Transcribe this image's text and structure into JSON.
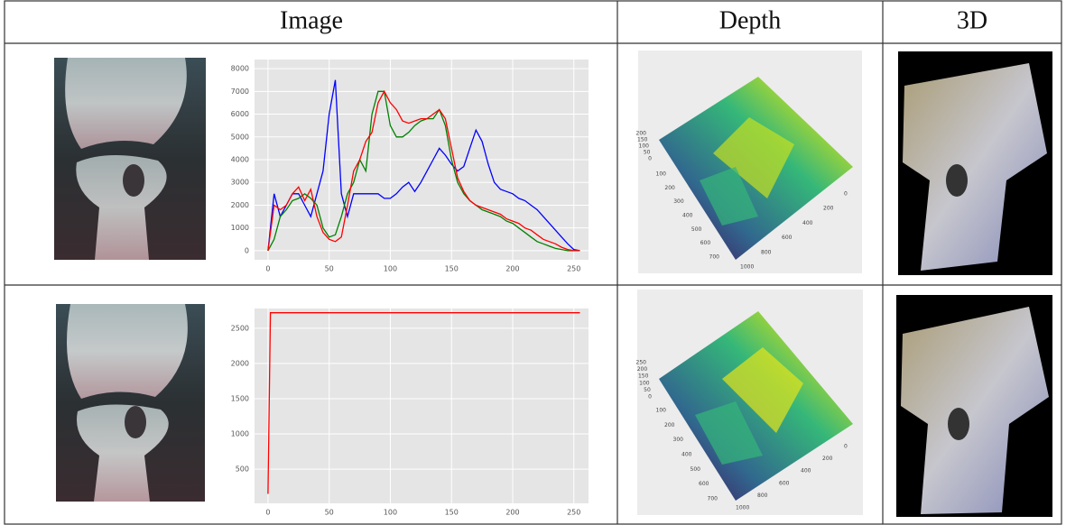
{
  "table": {
    "headers": [
      "Image",
      "Depth",
      "3D"
    ]
  },
  "chart_data": [
    {
      "type": "line",
      "x": [
        0,
        5,
        10,
        15,
        20,
        25,
        30,
        35,
        40,
        45,
        50,
        55,
        60,
        65,
        70,
        75,
        80,
        85,
        90,
        95,
        100,
        105,
        110,
        115,
        120,
        125,
        130,
        135,
        140,
        145,
        150,
        155,
        160,
        165,
        170,
        175,
        180,
        185,
        190,
        195,
        200,
        205,
        210,
        215,
        220,
        225,
        230,
        235,
        240,
        245,
        250,
        255
      ],
      "series": [
        {
          "color": "#0000ff",
          "values": [
            0,
            2500,
            1500,
            2000,
            2500,
            2500,
            2000,
            1500,
            2500,
            3500,
            6000,
            7500,
            2500,
            1500,
            2500,
            2500,
            2500,
            2500,
            2500,
            2300,
            2300,
            2500,
            2800,
            3000,
            2600,
            3000,
            3500,
            4000,
            4500,
            4200,
            3800,
            3500,
            3700,
            4500,
            5300,
            4800,
            3800,
            3000,
            2700,
            2600,
            2500,
            2300,
            2200,
            2000,
            1800,
            1500,
            1200,
            900,
            600,
            300,
            50,
            0
          ]
        },
        {
          "color": "#008000",
          "values": [
            0,
            500,
            1500,
            1800,
            2200,
            2300,
            2500,
            2300,
            2000,
            1000,
            600,
            700,
            1500,
            2500,
            3000,
            4000,
            3500,
            6000,
            7000,
            7000,
            5500,
            5000,
            5000,
            5200,
            5500,
            5700,
            5800,
            5800,
            6200,
            5500,
            4000,
            3000,
            2500,
            2200,
            2000,
            1800,
            1700,
            1600,
            1500,
            1300,
            1200,
            1000,
            800,
            600,
            400,
            300,
            200,
            100,
            50,
            0,
            0,
            0
          ]
        },
        {
          "color": "#ff0000",
          "values": [
            0,
            2000,
            1800,
            2000,
            2500,
            2800,
            2200,
            2700,
            1500,
            800,
            500,
            400,
            600,
            2000,
            3500,
            4000,
            4800,
            5200,
            6500,
            7000,
            6500,
            6200,
            5700,
            5600,
            5700,
            5800,
            5800,
            6000,
            6200,
            5800,
            4500,
            3200,
            2600,
            2200,
            2000,
            1900,
            1800,
            1700,
            1600,
            1400,
            1300,
            1200,
            1000,
            900,
            700,
            500,
            400,
            300,
            150,
            50,
            0,
            0
          ]
        }
      ],
      "xlim": [
        -11,
        262
      ],
      "ylim": [
        -400,
        8400
      ],
      "xticks": [
        0,
        50,
        100,
        150,
        200,
        250
      ],
      "yticks": [
        0,
        1000,
        2000,
        3000,
        4000,
        5000,
        6000,
        7000,
        8000
      ],
      "grid": true
    },
    {
      "type": "line",
      "x": [
        0,
        2,
        255
      ],
      "series": [
        {
          "color": "#ff0000",
          "values": [
            150,
            2720,
            2720
          ]
        }
      ],
      "xlim": [
        -11,
        262
      ],
      "ylim": [
        15,
        2780
      ],
      "xticks": [
        0,
        50,
        100,
        150,
        200,
        250
      ],
      "yticks": [
        500,
        1000,
        1500,
        2000,
        2500
      ],
      "grid": true
    }
  ],
  "depth_plots": [
    {
      "y_ticks": [
        "100",
        "200",
        "300",
        "400",
        "500",
        "600",
        "700"
      ],
      "x_ticks": [
        "1000",
        "800",
        "600",
        "400",
        "200",
        "0"
      ],
      "z_ticks": [
        "200",
        "150",
        "100",
        "50",
        "0"
      ]
    },
    {
      "y_ticks": [
        "100",
        "200",
        "300",
        "400",
        "500",
        "600",
        "700"
      ],
      "x_ticks": [
        "1000",
        "800",
        "600",
        "400",
        "200",
        "0"
      ],
      "z_ticks": [
        "250",
        "200",
        "150",
        "100",
        "50",
        "0"
      ]
    }
  ]
}
